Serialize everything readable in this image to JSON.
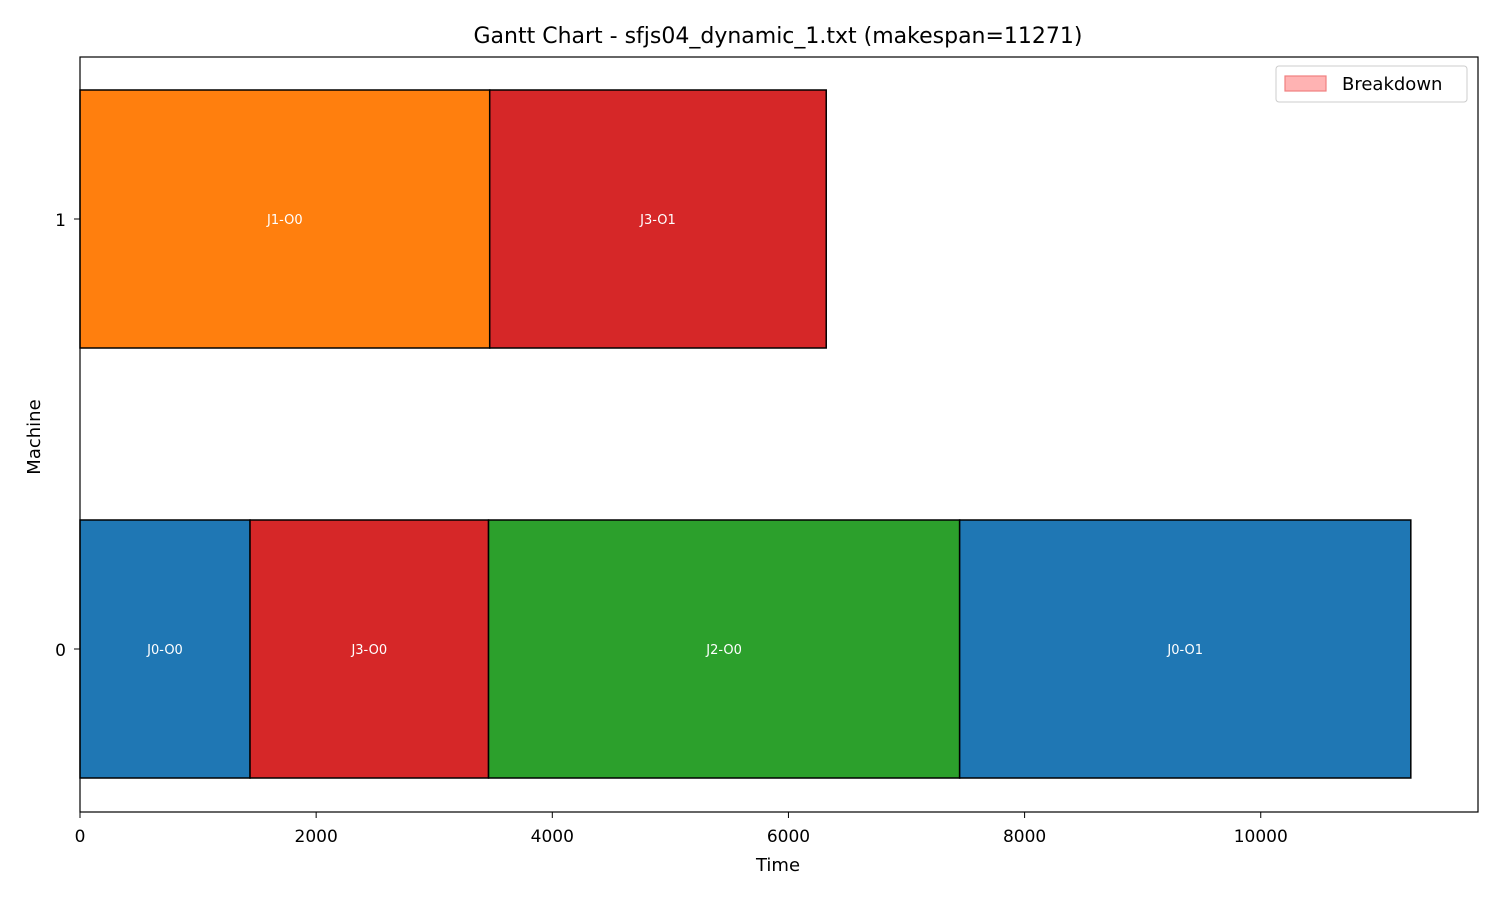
{
  "chart_data": {
    "type": "gantt",
    "title": "Gantt Chart - sfjs04_dynamic_1.txt (makespan=11271)",
    "xlabel": "Time",
    "ylabel": "Machine",
    "xlim": [
      0,
      11840
    ],
    "machines": [
      "0",
      "1"
    ],
    "xticks": [
      0,
      2000,
      4000,
      6000,
      8000,
      10000
    ],
    "legend": {
      "position": "top-right",
      "entries": [
        {
          "label": "Breakdown",
          "color": "#ffb3b3",
          "edge": "#f08080"
        }
      ]
    },
    "tasks": [
      {
        "label": "J0-O0",
        "machine": 0,
        "start": 0,
        "end": 1440,
        "color": "#1f77b4"
      },
      {
        "label": "J3-O0",
        "machine": 0,
        "start": 1440,
        "end": 3460,
        "color": "#d62728"
      },
      {
        "label": "J2-O0",
        "machine": 0,
        "start": 3460,
        "end": 7450,
        "color": "#2ca02c"
      },
      {
        "label": "J0-O1",
        "machine": 0,
        "start": 7450,
        "end": 11271,
        "color": "#1f77b4"
      },
      {
        "label": "J1-O0",
        "machine": 1,
        "start": 0,
        "end": 3470,
        "color": "#ff7f0e"
      },
      {
        "label": "J3-O1",
        "machine": 1,
        "start": 3470,
        "end": 6320,
        "color": "#d62728"
      }
    ]
  }
}
